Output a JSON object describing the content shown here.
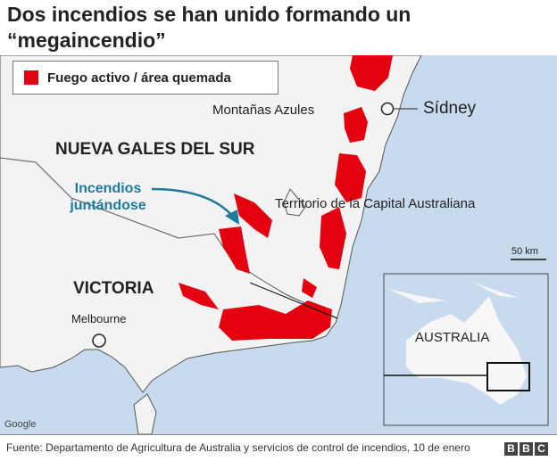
{
  "title": "Dos incendios se han unido formando un “megaincendio”",
  "legend": {
    "label": "Fuego activo / área quemada",
    "color": "#e3000f"
  },
  "labels": {
    "blue_mountains": "Montañas Azules",
    "sydney": "Sídney",
    "nsw": "NUEVA GALES DEL SUR",
    "fires_joining": "Incendios juntándose",
    "act": "Territorio de la Capital Australiana",
    "victoria": "VICTORIA",
    "melbourne": "Melbourne",
    "scale": "50 km",
    "inset_country": "AUSTRALIA",
    "attribution": "Google"
  },
  "colors": {
    "sea": "#c8dbee",
    "land": "#f3f3f3",
    "fire": "#e3000f",
    "annotation": "#1f7a9e"
  },
  "footer": {
    "source": "Fuente: Departamento de Agricultura de Australia y servicios de control de incendios, 10 de enero",
    "logo": [
      "B",
      "B",
      "C"
    ]
  }
}
